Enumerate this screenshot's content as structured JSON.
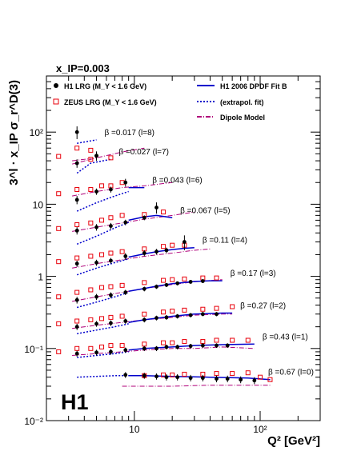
{
  "chart_data": {
    "type": "scatter",
    "title": "x_IP=0.003",
    "xlabel": "Q² [GeV²]",
    "ylabel": "3^l · x_IP σ_r^D(3)",
    "xscale": "log",
    "yscale": "log",
    "xlim": [
      2,
      300
    ],
    "ylim": [
      0.01,
      600
    ],
    "x_tick_labels": [
      "10",
      "10²"
    ],
    "y_tick_labels": [
      "10⁻²",
      "10⁻¹",
      "1",
      "10",
      "10²"
    ],
    "logo": "H1",
    "legend": [
      {
        "label": "H1 LRG (M_Y < 1.6 GeV)",
        "marker": "filled-circle",
        "color": "#000000"
      },
      {
        "label": "ZEUS LRG (M_Y < 1.6 GeV)",
        "marker": "open-square",
        "color": "#e8000b"
      },
      {
        "label": "H1 2006 DPDF Fit B",
        "style": "solid",
        "color": "#0000cc"
      },
      {
        "label": "(extrapol. fit)",
        "style": "dotted",
        "color": "#0000cc"
      },
      {
        "label": "Dipole Model",
        "style": "dash-dot",
        "color": "#b0007a"
      }
    ],
    "series": [
      {
        "label": "β =0.017 (l=8)",
        "beta": 0.017,
        "l": 8,
        "h1": {
          "x": [
            3.5,
            5.0
          ],
          "y": [
            100,
            47
          ],
          "err": [
            20,
            7
          ]
        },
        "zeus": {
          "x": [
            2.5,
            3.5,
            4.5
          ],
          "y": [
            46,
            60,
            56
          ]
        },
        "fit_extrapol": {
          "x": [
            3.5,
            5.0
          ],
          "y": [
            70,
            78
          ]
        },
        "fit_solid": {
          "x": [],
          "y": []
        },
        "dipole": {
          "x": [
            3.2,
            4.5
          ],
          "y": [
            40,
            43
          ]
        }
      },
      {
        "label": "β =0.027 (l=7)",
        "beta": 0.027,
        "l": 7,
        "h1": {
          "x": [
            3.5,
            5.0
          ],
          "y": [
            37,
            47
          ],
          "err": [
            5,
            5
          ]
        },
        "zeus": {
          "x": [
            4.5,
            6.5
          ],
          "y": [
            42,
            44
          ]
        },
        "fit_extrapol": {
          "x": [
            3.5,
            4.5,
            6.5
          ],
          "y": [
            27,
            37,
            42
          ]
        },
        "fit_solid": {
          "x": [],
          "y": []
        },
        "dipole": {
          "x": [
            3.2,
            5.0,
            8.0,
            12.0
          ],
          "y": [
            36,
            44,
            53,
            60
          ]
        }
      },
      {
        "label": "β =0.043 (l=6)",
        "beta": 0.043,
        "l": 6,
        "h1": {
          "x": [
            3.5,
            5.0,
            6.5,
            8.5
          ],
          "y": [
            11.5,
            15,
            16,
            20
          ],
          "err": [
            1.5,
            1.5,
            1.5,
            2.5
          ]
        },
        "zeus": {
          "x": [
            2.5,
            3.5,
            4.5,
            5.5,
            6.5,
            8.0
          ],
          "y": [
            14,
            16,
            16,
            18,
            18,
            20
          ]
        },
        "fit_extrapol": {
          "x": [
            3.5,
            5.0,
            7.0,
            9.0
          ],
          "y": [
            8,
            10.5,
            13,
            15
          ]
        },
        "fit_solid": {
          "x": [
            9.0,
            12.0
          ],
          "y": [
            17,
            17
          ]
        },
        "dipole": {
          "x": [
            3.2,
            5.0,
            8.0,
            12.0,
            20.0
          ],
          "y": [
            13,
            15,
            17,
            18,
            20
          ]
        }
      },
      {
        "label": "β =0.067 (l=5)",
        "beta": 0.067,
        "l": 5,
        "h1": {
          "x": [
            3.5,
            5.0,
            6.5,
            8.5,
            12.0,
            15.0
          ],
          "y": [
            4.3,
            4.8,
            5,
            5.6,
            6.5,
            9
          ],
          "err": [
            0.5,
            0.5,
            0.5,
            0.5,
            0.5,
            1.6
          ]
        },
        "zeus": {
          "x": [
            2.5,
            3.5,
            4.5,
            5.5,
            6.5,
            8.0,
            12.0,
            17.0
          ],
          "y": [
            4.6,
            5.2,
            5.5,
            6,
            6.5,
            7,
            7.2,
            7.8
          ]
        },
        "fit_extrapol": {
          "x": [
            3.5,
            5.0,
            7.0,
            9.0
          ],
          "y": [
            2.8,
            3.6,
            4.7,
            5.6
          ]
        },
        "fit_solid": {
          "x": [
            9.0,
            12.0,
            15.0,
            20.0
          ],
          "y": [
            6,
            6.7,
            7,
            6.5
          ]
        },
        "dipole": {
          "x": [
            3.2,
            5.0,
            8.0,
            12.0,
            20.0,
            30.0
          ],
          "y": [
            4.2,
            4.8,
            5.5,
            6.2,
            7,
            7.8
          ]
        }
      },
      {
        "label": "β =0.11 (l=4)",
        "beta": 0.11,
        "l": 4,
        "h1": {
          "x": [
            3.5,
            5.0,
            6.5,
            8.5,
            12.0,
            15.0,
            18.0,
            25.0
          ],
          "y": [
            1.5,
            1.55,
            1.65,
            1.9,
            2.1,
            2.2,
            2.3,
            3
          ],
          "err": [
            0.15,
            0.15,
            0.15,
            0.2,
            0.2,
            0.2,
            0.2,
            0.7
          ]
        },
        "zeus": {
          "x": [
            2.5,
            3.5,
            4.5,
            5.5,
            6.5,
            8.0,
            12.0,
            17.0,
            20.0,
            25.0
          ],
          "y": [
            1.6,
            1.8,
            1.9,
            2.0,
            2.1,
            2.2,
            2.4,
            2.6,
            2.7,
            2.7
          ]
        },
        "fit_extrapol": {
          "x": [
            3.5,
            5.0,
            7.0,
            9.0
          ],
          "y": [
            1.05,
            1.3,
            1.55,
            1.75
          ]
        },
        "fit_solid": {
          "x": [
            9.0,
            12.0,
            15.0,
            20.0,
            25.0,
            30.0
          ],
          "y": [
            1.85,
            2.05,
            2.2,
            2.35,
            2.45,
            2.5
          ]
        },
        "dipole": {
          "x": [
            3.2,
            5.0,
            8.0,
            12.0,
            20.0,
            30.0,
            40.0
          ],
          "y": [
            1.3,
            1.5,
            1.7,
            1.9,
            2.1,
            2.3,
            2.4
          ]
        }
      },
      {
        "label": "β =0.17 (l=3)",
        "beta": 0.17,
        "l": 3,
        "h1": {
          "x": [
            3.5,
            5.0,
            6.5,
            8.5,
            12.0,
            15.0,
            18.0,
            22.0,
            28.0,
            35.0
          ],
          "y": [
            0.47,
            0.52,
            0.55,
            0.6,
            0.67,
            0.72,
            0.76,
            0.8,
            0.84,
            0.86
          ],
          "err": [
            0.05,
            0.05,
            0.05,
            0.05,
            0.05,
            0.05,
            0.05,
            0.05,
            0.05,
            0.05
          ]
        },
        "zeus": {
          "x": [
            2.5,
            3.5,
            4.5,
            5.5,
            6.5,
            8.0,
            12.0,
            17.0,
            20.0,
            25.0,
            35.0,
            45.0
          ],
          "y": [
            0.52,
            0.6,
            0.65,
            0.7,
            0.72,
            0.75,
            0.82,
            0.88,
            0.9,
            0.92,
            0.95,
            0.95
          ]
        },
        "fit_extrapol": {
          "x": [
            3.5,
            5.0,
            7.0,
            9.0
          ],
          "y": [
            0.37,
            0.44,
            0.52,
            0.6
          ]
        },
        "fit_solid": {
          "x": [
            9.0,
            12.0,
            15.0,
            20.0,
            30.0,
            40.0,
            50.0
          ],
          "y": [
            0.62,
            0.68,
            0.73,
            0.79,
            0.85,
            0.87,
            0.87
          ]
        },
        "dipole": {
          "x": [
            3.2,
            5.0,
            8.0,
            12.0,
            20.0,
            30.0,
            50.0
          ],
          "y": [
            0.45,
            0.52,
            0.6,
            0.68,
            0.77,
            0.84,
            0.9
          ]
        }
      },
      {
        "label": "β =0.27 (l=2)",
        "beta": 0.27,
        "l": 2,
        "h1": {
          "x": [
            3.5,
            5.0,
            6.5,
            8.5,
            12.0,
            15.0,
            18.0,
            22.0,
            28.0,
            35.0,
            45.0
          ],
          "y": [
            0.2,
            0.22,
            0.225,
            0.24,
            0.25,
            0.265,
            0.27,
            0.28,
            0.29,
            0.3,
            0.3
          ],
          "err": [
            0.02,
            0.02,
            0.02,
            0.02,
            0.02,
            0.02,
            0.02,
            0.02,
            0.02,
            0.02,
            0.02
          ]
        },
        "zeus": {
          "x": [
            2.5,
            3.5,
            4.5,
            5.5,
            6.5,
            8.0,
            12.0,
            17.0,
            20.0,
            25.0,
            35.0,
            45.0,
            60.0
          ],
          "y": [
            0.22,
            0.24,
            0.25,
            0.26,
            0.27,
            0.28,
            0.3,
            0.32,
            0.33,
            0.34,
            0.35,
            0.36,
            0.38
          ]
        },
        "fit_extrapol": {
          "x": [
            3.5,
            5.0,
            7.0,
            9.0
          ],
          "y": [
            0.16,
            0.18,
            0.2,
            0.22
          ]
        },
        "fit_solid": {
          "x": [
            9.0,
            12.0,
            20.0,
            30.0,
            50.0,
            60.0
          ],
          "y": [
            0.23,
            0.25,
            0.28,
            0.3,
            0.31,
            0.31
          ]
        },
        "dipole": {
          "x": [
            3.2,
            5.0,
            8.0,
            12.0,
            20.0,
            30.0,
            50.0,
            60.0
          ],
          "y": [
            0.19,
            0.21,
            0.23,
            0.25,
            0.27,
            0.29,
            0.3,
            0.3
          ]
        }
      },
      {
        "label": "β =0.43 (l=1)",
        "beta": 0.43,
        "l": 1,
        "h1": {
          "x": [
            3.5,
            5.0,
            6.5,
            8.5,
            12.0,
            15.0,
            18.0,
            22.0,
            28.0,
            35.0,
            45.0,
            55.0
          ],
          "y": [
            0.085,
            0.088,
            0.09,
            0.095,
            0.1,
            0.1,
            0.105,
            0.105,
            0.108,
            0.11,
            0.11,
            0.11
          ],
          "err": [
            0.008,
            0.008,
            0.008,
            0.008,
            0.008,
            0.008,
            0.008,
            0.008,
            0.008,
            0.008,
            0.008,
            0.008
          ]
        },
        "zeus": {
          "x": [
            2.5,
            3.5,
            4.5,
            5.5,
            6.5,
            8.0,
            12.0,
            17.0,
            20.0,
            25.0,
            35.0,
            45.0,
            60.0,
            80.0
          ],
          "y": [
            0.09,
            0.1,
            0.1,
            0.105,
            0.11,
            0.11,
            0.115,
            0.12,
            0.12,
            0.125,
            0.125,
            0.13,
            0.13,
            0.13
          ]
        },
        "fit_extrapol": {
          "x": [
            3.5,
            5.0,
            7.0,
            9.0
          ],
          "y": [
            0.075,
            0.08,
            0.085,
            0.09
          ]
        },
        "fit_solid": {
          "x": [
            9.0,
            12.0,
            20.0,
            30.0,
            50.0,
            90.0
          ],
          "y": [
            0.095,
            0.1,
            0.105,
            0.11,
            0.113,
            0.115
          ]
        },
        "dipole": {
          "x": [
            3.2,
            5.0,
            8.0,
            12.0,
            20.0,
            30.0,
            50.0,
            90.0
          ],
          "y": [
            0.08,
            0.085,
            0.09,
            0.095,
            0.1,
            0.1,
            0.105,
            0.1
          ]
        }
      },
      {
        "label": "β =0.67 (l=0)",
        "beta": 0.67,
        "l": 0,
        "h1": {
          "x": [
            8.5,
            12.0,
            15.0,
            18.0,
            22.0,
            28.0,
            35.0,
            45.0,
            55.0,
            70.0,
            90.0
          ],
          "y": [
            0.043,
            0.042,
            0.041,
            0.04,
            0.04,
            0.039,
            0.039,
            0.038,
            0.038,
            0.037,
            0.036
          ],
          "err": [
            0.004,
            0.004,
            0.004,
            0.004,
            0.004,
            0.004,
            0.004,
            0.004,
            0.004,
            0.004,
            0.004
          ]
        },
        "zeus": {
          "x": [
            12.0,
            17.0,
            20.0,
            25.0,
            35.0,
            45.0,
            60.0,
            80.0,
            100.0,
            120.0
          ],
          "y": [
            0.042,
            0.043,
            0.043,
            0.044,
            0.044,
            0.045,
            0.045,
            0.046,
            0.04,
            0.037
          ]
        },
        "fit_extrapol": {
          "x": [
            3.5,
            5.0,
            7.0,
            9.0
          ],
          "y": [
            0.04,
            0.041,
            0.042,
            0.042
          ]
        },
        "fit_solid": {
          "x": [
            9.0,
            12.0,
            20.0,
            40.0,
            80.0,
            120.0
          ],
          "y": [
            0.042,
            0.042,
            0.041,
            0.04,
            0.039,
            0.037
          ]
        },
        "dipole": {
          "x": [
            8.0,
            12.0,
            20.0,
            40.0,
            80.0,
            120.0
          ],
          "y": [
            0.03,
            0.03,
            0.03,
            0.031,
            0.031,
            0.031
          ]
        }
      }
    ]
  }
}
